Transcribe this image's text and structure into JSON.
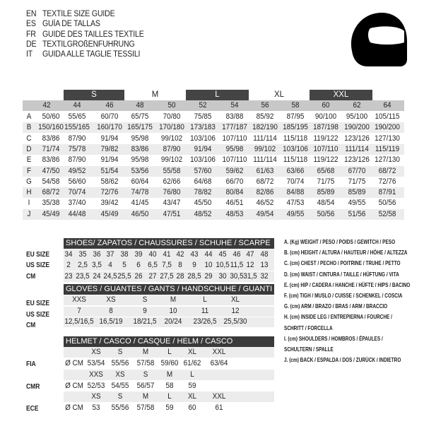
{
  "titles": [
    {
      "code": "EN",
      "text": "TEXTILE SIZE GUIDE"
    },
    {
      "code": "ES",
      "text": "GUÍA DE TALLAS"
    },
    {
      "code": "FR",
      "text": "GUIDE DES TAILLES TEXTILE"
    },
    {
      "code": "DE",
      "text": "TEXTILGRÖßENFÜHRUNG"
    },
    {
      "code": "IT",
      "text": "GUIDA ALLE TAGLIE TESSILI"
    }
  ],
  "textile": {
    "size_bands": [
      {
        "label": "S",
        "dark": true
      },
      {
        "label": "M",
        "dark": false
      },
      {
        "label": "L",
        "dark": true
      },
      {
        "label": "XL",
        "dark": false
      },
      {
        "label": "XXL",
        "dark": true
      }
    ],
    "columns": [
      "42",
      "44",
      "46",
      "48",
      "50",
      "52",
      "54",
      "56",
      "58",
      "60",
      "62",
      "64"
    ],
    "rows": [
      {
        "key": "A",
        "values": [
          "50/60",
          "55/65",
          "60/70",
          "65/75",
          "70/80",
          "75/85",
          "83/88",
          "85/92",
          "87/95",
          "90/100",
          "95/100",
          "105/115"
        ]
      },
      {
        "key": "B",
        "values": [
          "150/160",
          "155/165",
          "160/170",
          "165/175",
          "170/180",
          "173/183",
          "177/187",
          "182/190",
          "185/195",
          "187/198",
          "190/200",
          "190/200"
        ]
      },
      {
        "key": "C",
        "values": [
          "83/86",
          "87/90",
          "91/94",
          "95/98",
          "99/102",
          "103/106",
          "107/110",
          "111/114",
          "115/118",
          "119/122",
          "123/126",
          "127/130"
        ]
      },
      {
        "key": "D",
        "values": [
          "71/74",
          "75/78",
          "79/82",
          "83/86",
          "87/90",
          "91/94",
          "95/98",
          "99/102",
          "103/106",
          "107/110",
          "111/114",
          "115/119"
        ]
      },
      {
        "key": "E",
        "values": [
          "83/86",
          "87/90",
          "91/94",
          "95/98",
          "99/102",
          "103/106",
          "107/110",
          "111/114",
          "115/118",
          "119/122",
          "123/126",
          "127/130"
        ]
      },
      {
        "key": "F",
        "values": [
          "47/50",
          "49/52",
          "51/54",
          "53/56",
          "55/58",
          "57/60",
          "59/62",
          "61/63",
          "63/66",
          "65/68",
          "67/70",
          "68/72"
        ]
      },
      {
        "key": "G",
        "values": [
          "54/58",
          "56/60",
          "58/62",
          "60/64",
          "62/66",
          "64/68",
          "66/70",
          "68/72",
          "70/74",
          "71/75",
          "71/75",
          "72/76"
        ]
      },
      {
        "key": "H",
        "values": [
          "68/72",
          "70/74",
          "72/76",
          "74/78",
          "76/80",
          "78/82",
          "80/84",
          "82/86",
          "84/88",
          "85/89",
          "85/89",
          "87/91"
        ]
      },
      {
        "key": "I",
        "values": [
          "35/38",
          "37/40",
          "39/42",
          "41/45",
          "43/47",
          "45/50",
          "46/51",
          "46/52",
          "47/53",
          "48/54",
          "49/55",
          "50/56"
        ]
      },
      {
        "key": "J",
        "values": [
          "45/49",
          "44/48",
          "45/49",
          "46/50",
          "47/51",
          "48/52",
          "48/53",
          "49/54",
          "49/55",
          "50/56",
          "51/56",
          "52/58"
        ]
      }
    ]
  },
  "shoes": {
    "title": "SHOES/ ZAPATOS / CHAUSSURES / SCHUHE / SCARPE",
    "rows": [
      {
        "label": "EU SIZE",
        "values": [
          "34",
          "35",
          "36",
          "37",
          "38",
          "39",
          "40",
          "41",
          "42",
          "43",
          "44",
          "45",
          "46",
          "47",
          "48"
        ]
      },
      {
        "label": "US SIZE",
        "values": [
          "2",
          "2,5",
          "3,5",
          "4",
          "5",
          "6",
          "6,5",
          "7,5",
          "8",
          "9",
          "10",
          "10,5",
          "11,5",
          "12",
          "13"
        ]
      },
      {
        "label": "CM",
        "values": [
          "23",
          "23,5",
          "24",
          "24,5",
          "25,5",
          "26",
          "27",
          "27,5",
          "28",
          "28,5",
          "29",
          "30",
          "30,5",
          "31,5",
          "32"
        ]
      }
    ]
  },
  "gloves": {
    "title": "GLOVES / GUANTES / GANTS / HANDSCHUHE / GUANTI",
    "rows": [
      {
        "label": "EU SIZE",
        "values": [
          "XXS",
          "XS",
          "S",
          "M",
          "L",
          "XL"
        ]
      },
      {
        "label": "US SIZE",
        "values": [
          "7",
          "8",
          "9",
          "10",
          "11",
          "12"
        ]
      },
      {
        "label": "CM",
        "values": [
          "12,5/16,5",
          "16,5/19",
          "18/21,5",
          "20/24",
          "23/26,5",
          "25,5/30"
        ]
      }
    ]
  },
  "helmet": {
    "title": "HELMET / CASCO / CASQUE / HELM / CASCO",
    "groups": [
      {
        "label": "FIA",
        "unit": "Ø CM",
        "sizes": [
          "XS",
          "S",
          "M",
          "L",
          "XL",
          "XXL"
        ],
        "values": [
          "53/54",
          "55/56",
          "57/58",
          "59/60",
          "61/62",
          "63/64"
        ]
      },
      {
        "label": "CMR",
        "unit": "Ø CM",
        "sizes": [
          "XXS",
          "XS",
          "S",
          "M",
          "L"
        ],
        "values": [
          "52/53",
          "54/55",
          "56/57",
          "58",
          "59"
        ]
      },
      {
        "label": "ECE",
        "unit": "Ø CM",
        "sizes": [
          "XS",
          "S",
          "M",
          "L",
          "XL",
          "XXL"
        ],
        "values": [
          "53",
          "55/56",
          "57/58",
          "59",
          "60",
          "61"
        ]
      }
    ]
  },
  "legend": [
    "A. (Kg) WEIGHT / PESO / POIDS / GEWITCH / PESO",
    "B. (cm) HEIGHT / ALTURA / HAUTEUR / HÖHE / ALTEZZA",
    "C. (cm) CHEST / PECHO / POITRINE / TRUHE / PETTO",
    "D. (cm) WAIST / CINTURA / TAILLE / HÜFTUNG / VITA",
    "E. (cm) HIP / CADERA / HANCHE / HÜFTE / HIPS /  BACINO",
    "F.  (cm) TIGH / MUSLO / CUISSE / SCHENKEL / COSCIA",
    "G. (cm) ARM  / BRAZO / BRAS / ARM / BRACCIO",
    "H. (cm) INSIDE LEG / ENTREPIERNA / FOURCHE /",
    "SCHRITT / FORCELLA",
    "I.  (cm) SHOULDERS / HOMBROS / ÉPAULES /",
    "SCHULTERN / SPALLE",
    "J. (cm) BACK / ESPALDA / DOS / ZURÜCK / INDIETRO"
  ],
  "icons": {
    "logo": "helmet-icon"
  },
  "colors": {
    "dark_band": "#3a3a3a",
    "header_grey": "#c8c8c8",
    "row_shade": "#ececec"
  }
}
